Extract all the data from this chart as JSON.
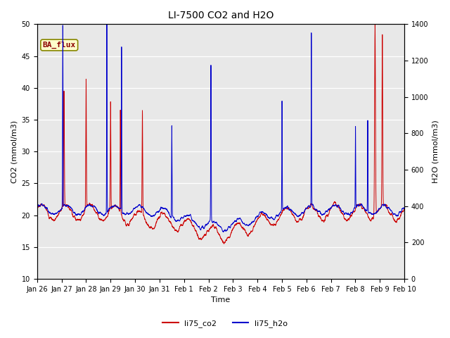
{
  "title": "LI-7500 CO2 and H2O",
  "xlabel": "Time",
  "ylabel_left": "CO2 (mmol/m3)",
  "ylabel_right": "H2O (mmol/m3)",
  "ylim_left": [
    10,
    50
  ],
  "ylim_right": [
    0,
    1400
  ],
  "xtick_labels": [
    "Jan 26",
    "Jan 27",
    "Jan 28",
    "Jan 29",
    "Jan 30",
    "Jan 31",
    "Feb 1",
    "Feb 2",
    "Feb 3",
    "Feb 4",
    "Feb 5",
    "Feb 6",
    "Feb 7",
    "Feb 8",
    "Feb 9",
    "Feb 10"
  ],
  "annotation_text": "BA_flux",
  "bg_color": "#e8e8e8",
  "co2_color": "#cc0000",
  "h2o_color": "#0000cc",
  "legend_entries": [
    "li75_co2",
    "li75_h2o"
  ]
}
